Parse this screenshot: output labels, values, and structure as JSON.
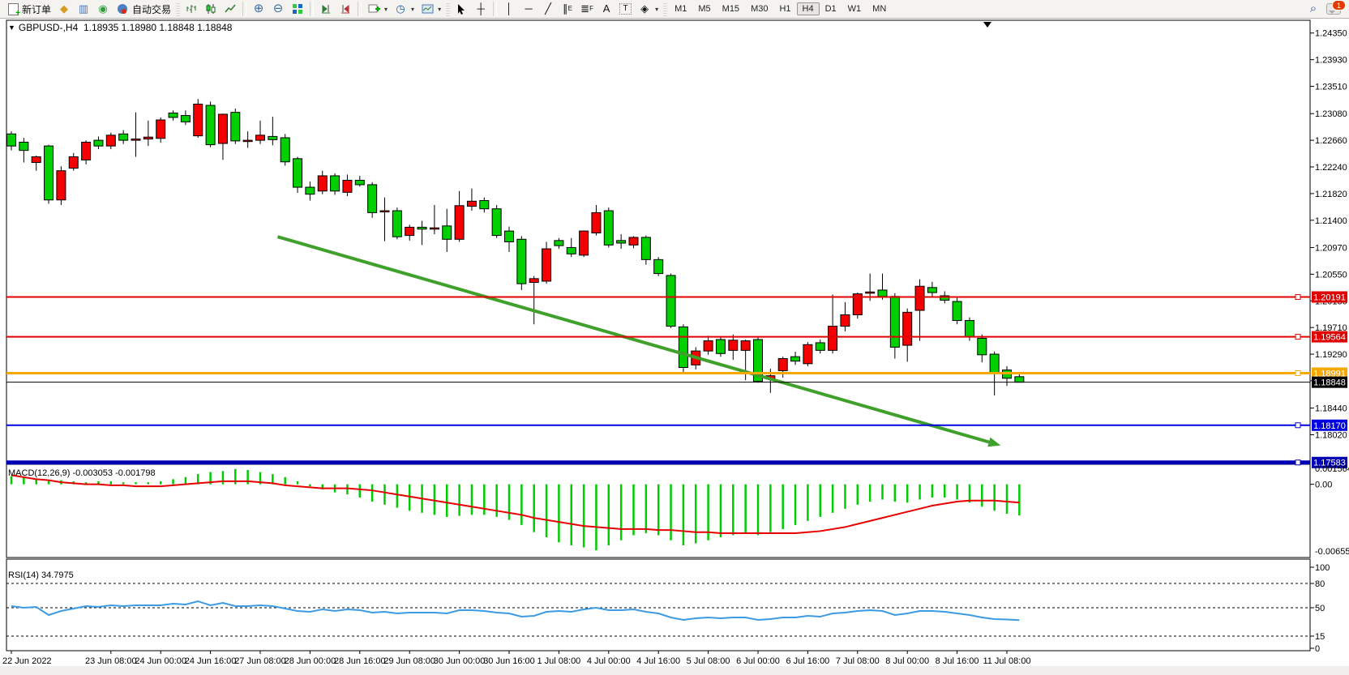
{
  "toolbar": {
    "new_order": "新订单",
    "autotrade": "自动交易",
    "timeframes": [
      "M1",
      "M5",
      "M15",
      "M30",
      "H1",
      "H4",
      "D1",
      "W1",
      "MN"
    ],
    "active_timeframe": "H4",
    "message_badge": "1"
  },
  "chart": {
    "title": "GBPUSD-,H4",
    "ohlc_text": "1.18935 1.18980 1.18848 1.18848",
    "macd_label": "MACD(12,26,9) -0.003053 -0.001798",
    "rsi_label": "RSI(14) 34.7975"
  },
  "chart_data": [
    {
      "id": "price",
      "type": "candlestick",
      "symbol": "GBPUSD",
      "period": "H4",
      "up_color": "#f40000",
      "down_color": "#00d000",
      "wick_color": "#000000",
      "y_range": [
        1.17567,
        1.24551
      ],
      "y_ticks": [
        1.2435,
        1.2393,
        1.2351,
        1.2308,
        1.2266,
        1.2224,
        1.2182,
        1.214,
        1.2097,
        1.2055,
        1.2013,
        1.1971,
        1.1929,
        1.1887,
        1.1844,
        1.1802
      ],
      "x_tick_labels": [
        {
          "i": 0,
          "label": "22 Jun 2022"
        },
        {
          "i": 8,
          "label": "23 Jun 08:00"
        },
        {
          "i": 12,
          "label": "24 Jun 00:00"
        },
        {
          "i": 16,
          "label": "24 Jun 16:00"
        },
        {
          "i": 20,
          "label": "27 Jun 08:00"
        },
        {
          "i": 24,
          "label": "28 Jun 00:00"
        },
        {
          "i": 28,
          "label": "28 Jun 16:00"
        },
        {
          "i": 32,
          "label": "29 Jun 08:00"
        },
        {
          "i": 36,
          "label": "30 Jun 00:00"
        },
        {
          "i": 40,
          "label": "30 Jun 16:00"
        },
        {
          "i": 44,
          "label": "1 Jul 08:00"
        },
        {
          "i": 48,
          "label": "4 Jul 00:00"
        },
        {
          "i": 52,
          "label": "4 Jul 16:00"
        },
        {
          "i": 56,
          "label": "5 Jul 08:00"
        },
        {
          "i": 60,
          "label": "6 Jul 00:00"
        },
        {
          "i": 64,
          "label": "6 Jul 16:00"
        },
        {
          "i": 68,
          "label": "7 Jul 08:00"
        },
        {
          "i": 72,
          "label": "8 Jul 00:00"
        },
        {
          "i": 76,
          "label": "8 Jul 16:00"
        },
        {
          "i": 80,
          "label": "11 Jul 08:00"
        }
      ],
      "candles": [
        [
          1.2276,
          1.228,
          1.225,
          1.2257
        ],
        [
          1.2263,
          1.227,
          1.2231,
          1.225
        ],
        [
          1.2231,
          1.2242,
          1.2218,
          1.224
        ],
        [
          1.2257,
          1.2259,
          1.2166,
          1.2172
        ],
        [
          1.2172,
          1.2225,
          1.2164,
          1.2218
        ],
        [
          1.2222,
          1.2246,
          1.2218,
          1.224
        ],
        [
          1.2235,
          1.2266,
          1.2228,
          1.2263
        ],
        [
          1.2266,
          1.2272,
          1.2252,
          1.2257
        ],
        [
          1.2257,
          1.2278,
          1.2252,
          1.2274
        ],
        [
          1.2276,
          1.2282,
          1.226,
          1.2266
        ],
        [
          1.2266,
          1.231,
          1.224,
          1.2268
        ],
        [
          1.2268,
          1.2297,
          1.2257,
          1.2271
        ],
        [
          1.2269,
          1.2302,
          1.2262,
          1.2298
        ],
        [
          1.2309,
          1.2313,
          1.2297,
          1.2302
        ],
        [
          1.2305,
          1.2313,
          1.229,
          1.2295
        ],
        [
          1.2273,
          1.2331,
          1.227,
          1.2323
        ],
        [
          1.2321,
          1.2327,
          1.2255,
          1.2259
        ],
        [
          1.2261,
          1.2308,
          1.2235,
          1.2307
        ],
        [
          1.231,
          1.2316,
          1.226,
          1.2265
        ],
        [
          1.2264,
          1.228,
          1.2254,
          1.2266
        ],
        [
          1.2266,
          1.2297,
          1.226,
          1.2274
        ],
        [
          1.2272,
          1.2303,
          1.2258,
          1.2267
        ],
        [
          1.227,
          1.2276,
          1.2226,
          1.2232
        ],
        [
          1.2237,
          1.224,
          1.2183,
          1.2192
        ],
        [
          1.2192,
          1.2201,
          1.2171,
          1.2181
        ],
        [
          1.2186,
          1.2218,
          1.2181,
          1.221
        ],
        [
          1.221,
          1.2214,
          1.218,
          1.2186
        ],
        [
          1.2184,
          1.2212,
          1.2178,
          1.2203
        ],
        [
          1.2203,
          1.221,
          1.2193,
          1.2196
        ],
        [
          1.2196,
          1.22,
          1.2144,
          1.2152
        ],
        [
          1.2155,
          1.2176,
          1.2107,
          1.2155
        ],
        [
          1.2155,
          1.216,
          1.211,
          1.2114
        ],
        [
          1.2116,
          1.2133,
          1.2108,
          1.2129
        ],
        [
          1.2129,
          1.2139,
          1.2101,
          1.2126
        ],
        [
          1.2126,
          1.2164,
          1.2118,
          1.2128
        ],
        [
          1.2131,
          1.2158,
          1.209,
          1.211
        ],
        [
          1.211,
          1.2186,
          1.2106,
          1.2163
        ],
        [
          1.2162,
          1.219,
          1.2155,
          1.217
        ],
        [
          1.2171,
          1.2176,
          1.2152,
          1.2158
        ],
        [
          1.2158,
          1.2164,
          1.2112,
          1.2116
        ],
        [
          1.2123,
          1.213,
          1.209,
          1.2106
        ],
        [
          1.211,
          1.2115,
          1.203,
          1.204
        ],
        [
          1.2042,
          1.2052,
          1.1976,
          1.2048
        ],
        [
          1.2044,
          1.2106,
          1.204,
          1.2095
        ],
        [
          1.2108,
          1.2112,
          1.2095,
          1.21
        ],
        [
          1.2097,
          1.2112,
          1.2082,
          1.2087
        ],
        [
          1.2085,
          1.2124,
          1.2082,
          1.2123
        ],
        [
          1.212,
          1.2164,
          1.2116,
          1.2152
        ],
        [
          1.2155,
          1.216,
          1.2097,
          1.2101
        ],
        [
          1.2108,
          1.2118,
          1.2095,
          1.2104
        ],
        [
          1.2101,
          1.2115,
          1.2096,
          1.2113
        ],
        [
          1.2113,
          1.2116,
          1.207,
          1.2078
        ],
        [
          1.2078,
          1.2082,
          1.2052,
          1.2056
        ],
        [
          1.2053,
          1.2056,
          1.197,
          1.1973
        ],
        [
          1.1972,
          1.1976,
          1.1901,
          1.1908
        ],
        [
          1.1912,
          1.194,
          1.1905,
          1.1934
        ],
        [
          1.1934,
          1.1958,
          1.1928,
          1.195
        ],
        [
          1.1952,
          1.1956,
          1.1925,
          1.193
        ],
        [
          1.1935,
          1.196,
          1.192,
          1.1951
        ],
        [
          1.1935,
          1.1952,
          1.1888,
          1.195
        ],
        [
          1.1952,
          1.1956,
          1.1884,
          1.1886
        ],
        [
          1.189,
          1.1906,
          1.1868,
          1.1895
        ],
        [
          1.1903,
          1.1925,
          1.1892,
          1.1922
        ],
        [
          1.1925,
          1.1933,
          1.1912,
          1.1918
        ],
        [
          1.1914,
          1.1948,
          1.191,
          1.1944
        ],
        [
          1.1947,
          1.1952,
          1.193,
          1.1935
        ],
        [
          1.1935,
          1.2023,
          1.193,
          1.1973
        ],
        [
          1.1973,
          1.2011,
          1.1965,
          1.1991
        ],
        [
          1.1991,
          1.2026,
          1.1985,
          1.2024
        ],
        [
          1.2025,
          1.2056,
          1.2013,
          1.2027
        ],
        [
          1.203,
          1.2056,
          1.2015,
          1.202
        ],
        [
          1.202,
          1.2025,
          1.1922,
          1.194
        ],
        [
          1.1943,
          1.2001,
          1.1917,
          1.1995
        ],
        [
          1.1998,
          1.2047,
          1.195,
          1.2036
        ],
        [
          1.2034,
          1.2043,
          1.2018,
          1.2026
        ],
        [
          1.2021,
          1.2028,
          1.2009,
          1.2014
        ],
        [
          1.2012,
          1.2018,
          1.1976,
          1.1982
        ],
        [
          1.1982,
          1.1987,
          1.195,
          1.1956
        ],
        [
          1.1954,
          1.196,
          1.1916,
          1.1928
        ],
        [
          1.1929,
          1.1933,
          1.1864,
          1.1898
        ],
        [
          1.1904,
          1.191,
          1.1879,
          1.1891
        ],
        [
          1.18935,
          1.1898,
          1.18848,
          1.18848
        ]
      ],
      "hlines": [
        {
          "price": 1.20191,
          "label": "1.20191",
          "color": "#e00000",
          "width": 2,
          "handle": true
        },
        {
          "price": 1.19564,
          "label": "1.19564",
          "color": "#e00000",
          "width": 2,
          "handle": true
        },
        {
          "price": 1.18991,
          "label": "1.18991",
          "color": "#f5a800",
          "width": 3,
          "handle": true
        },
        {
          "price": 1.18848,
          "label": "1.18848",
          "color": "#000000",
          "width": 1,
          "handle": false
        },
        {
          "price": 1.1817,
          "label": "1.18170",
          "color": "#0000e0",
          "width": 2,
          "handle": true
        },
        {
          "price": 1.17583,
          "label": "1.17583",
          "color": "#0000b4",
          "width": 5,
          "handle": true
        }
      ],
      "trendline": {
        "from_index": 21.4,
        "from_price": 1.2114,
        "to_index": 79.0,
        "to_price": 1.1788,
        "color": "#3fa02c",
        "width": 4
      }
    },
    {
      "id": "macd",
      "type": "macd",
      "label": "MACD(12,26,9) -0.003053 -0.001798",
      "hist_color": "#00cc00",
      "signal_color": "#e80000",
      "y_labels": {
        "top": "0.001564",
        "zero": "0.00",
        "bottom": "-0.006555"
      },
      "main": [
        0.0008,
        0.0007,
        0.0005,
        0.0004,
        0.0004,
        0.0003,
        0.0002,
        0.0003,
        0.0003,
        0.0002,
        0.0002,
        0.0002,
        0.0003,
        0.0005,
        0.0007,
        0.001,
        0.0012,
        0.0013,
        0.0015,
        0.0014,
        0.0012,
        0.001,
        0.0007,
        0.0003,
        -0.0002,
        -0.0005,
        -0.0008,
        -0.001,
        -0.0013,
        -0.0017,
        -0.002,
        -0.0023,
        -0.0026,
        -0.0028,
        -0.003,
        -0.0032,
        -0.0031,
        -0.003,
        -0.003,
        -0.0032,
        -0.0035,
        -0.004,
        -0.0047,
        -0.0052,
        -0.0057,
        -0.006,
        -0.0062,
        -0.0065,
        -0.006,
        -0.0055,
        -0.005,
        -0.0048,
        -0.005,
        -0.0055,
        -0.006,
        -0.0058,
        -0.0055,
        -0.0052,
        -0.005,
        -0.0048,
        -0.005,
        -0.0047,
        -0.0044,
        -0.004,
        -0.0036,
        -0.0032,
        -0.0028,
        -0.0024,
        -0.002,
        -0.0017,
        -0.0015,
        -0.0017,
        -0.0018,
        -0.0015,
        -0.0013,
        -0.0013,
        -0.0015,
        -0.0018,
        -0.0022,
        -0.0026,
        -0.0029,
        -0.003053
      ],
      "signal": [
        0.0009,
        0.0007,
        0.0005,
        0.0004,
        0.0002,
        0.0001,
        0.0,
        0.0,
        -0.0001,
        -0.0001,
        -0.0002,
        -0.0002,
        -0.0002,
        -0.0001,
        0.0,
        0.0001,
        0.0002,
        0.0003,
        0.0003,
        0.0003,
        0.0002,
        0.0001,
        -0.0001,
        -0.0002,
        -0.0003,
        -0.0004,
        -0.0004,
        -0.0004,
        -0.0005,
        -0.0006,
        -0.0008,
        -0.001,
        -0.0012,
        -0.0014,
        -0.0016,
        -0.0018,
        -0.002,
        -0.0022,
        -0.0024,
        -0.0026,
        -0.0028,
        -0.003,
        -0.0033,
        -0.0035,
        -0.0037,
        -0.0039,
        -0.0041,
        -0.0042,
        -0.0043,
        -0.0044,
        -0.0044,
        -0.0044,
        -0.0045,
        -0.0045,
        -0.0046,
        -0.0047,
        -0.0047,
        -0.0048,
        -0.0048,
        -0.0048,
        -0.0048,
        -0.0048,
        -0.0048,
        -0.0048,
        -0.0047,
        -0.0046,
        -0.0044,
        -0.0042,
        -0.0039,
        -0.0036,
        -0.0033,
        -0.003,
        -0.0027,
        -0.0024,
        -0.0021,
        -0.0019,
        -0.0017,
        -0.0016,
        -0.0016,
        -0.0016,
        -0.0017,
        -0.001798
      ]
    },
    {
      "id": "rsi",
      "type": "line",
      "label": "RSI(14) 34.7975",
      "line_color": "#3d9be4",
      "levels_dashed": [
        80,
        50,
        15
      ],
      "y_axis_labels": [
        100,
        80,
        50,
        15,
        0
      ],
      "values": [
        52,
        50,
        51,
        41,
        46,
        49,
        52,
        51,
        53,
        52,
        53,
        53,
        53,
        55,
        54,
        58,
        53,
        56,
        52,
        52,
        53,
        52,
        49,
        46,
        45,
        48,
        46,
        48,
        47,
        44,
        45,
        43,
        44,
        44,
        44,
        43,
        47,
        47,
        46,
        44,
        43,
        39,
        40,
        45,
        46,
        45,
        48,
        50,
        47,
        47,
        48,
        45,
        43,
        38,
        35,
        37,
        38,
        37,
        38,
        38,
        35,
        36,
        38,
        38,
        40,
        39,
        43,
        44,
        46,
        47,
        46,
        41,
        43,
        46,
        46,
        45,
        43,
        41,
        38,
        36,
        35.5,
        34.7975
      ]
    }
  ]
}
